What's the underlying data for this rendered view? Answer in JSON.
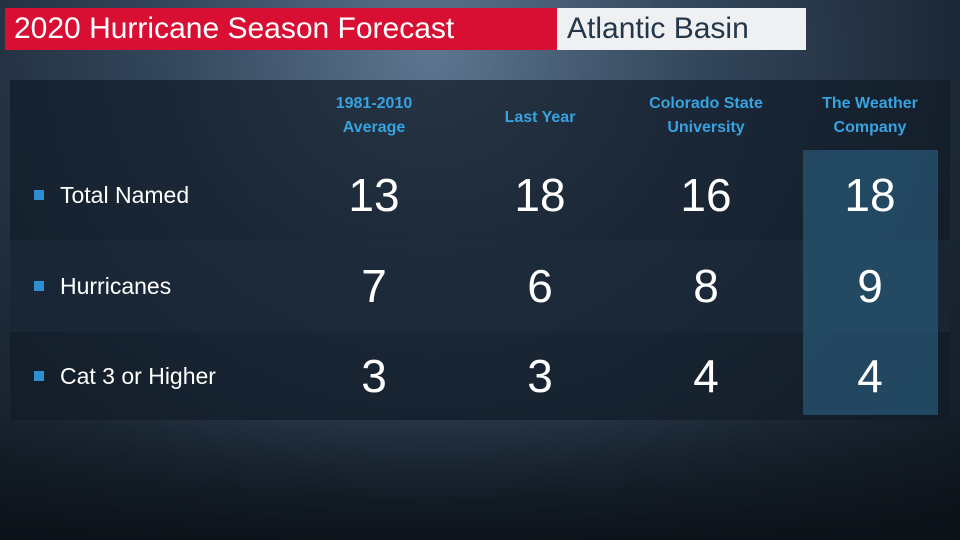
{
  "title": {
    "main": "2020 Hurricane Season Forecast",
    "sub": "Atlantic Basin"
  },
  "colors": {
    "title_red": "#d80f32",
    "header_blue": "#37a3e0",
    "highlight_column": "#28557a"
  },
  "chart_data": {
    "type": "table",
    "columns": [
      "1981-2010 Average",
      "Last Year",
      "Colorado State University",
      "The Weather Company"
    ],
    "column_header_lines": [
      [
        "1981-2010",
        "Average"
      ],
      [
        "Last Year"
      ],
      [
        "Colorado State",
        "University"
      ],
      [
        "The Weather",
        "Company"
      ]
    ],
    "highlighted_column": "The Weather Company",
    "rows": [
      {
        "label": "Total Named",
        "values": [
          13,
          18,
          16,
          18
        ]
      },
      {
        "label": "Hurricanes",
        "values": [
          7,
          6,
          8,
          9
        ]
      },
      {
        "label": "Cat 3 or Higher",
        "values": [
          3,
          3,
          4,
          4
        ]
      }
    ]
  }
}
